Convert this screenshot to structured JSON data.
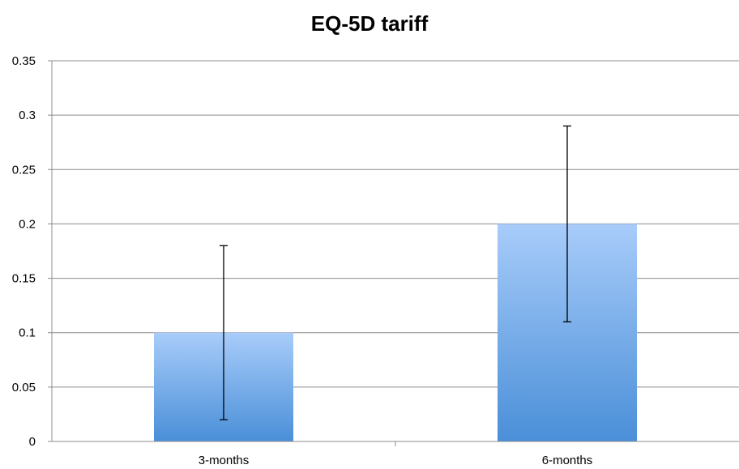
{
  "chart_data": {
    "type": "bar",
    "title": "EQ-5D tariff",
    "xlabel": "",
    "ylabel": "",
    "categories": [
      "3-months",
      "6-months"
    ],
    "values": [
      0.1,
      0.2
    ],
    "error_bars": [
      {
        "low": 0.02,
        "high": 0.18
      },
      {
        "low": 0.11,
        "high": 0.29
      }
    ],
    "ylim": [
      0,
      0.35
    ],
    "yticks": [
      0,
      0.05,
      0.1,
      0.15,
      0.2,
      0.25,
      0.3,
      0.35
    ],
    "ytick_labels": [
      "0",
      "0.05",
      "0.1",
      "0.15",
      "0.2",
      "0.25",
      "0.3",
      "0.35"
    ],
    "grid": true,
    "legend": "none",
    "colors": {
      "bar_top": "#a8ccfa",
      "bar_bottom": "#4a8fd8",
      "grid": "#8c8c8c",
      "axis": "#8c8c8c",
      "error_bar": "#000000"
    }
  }
}
